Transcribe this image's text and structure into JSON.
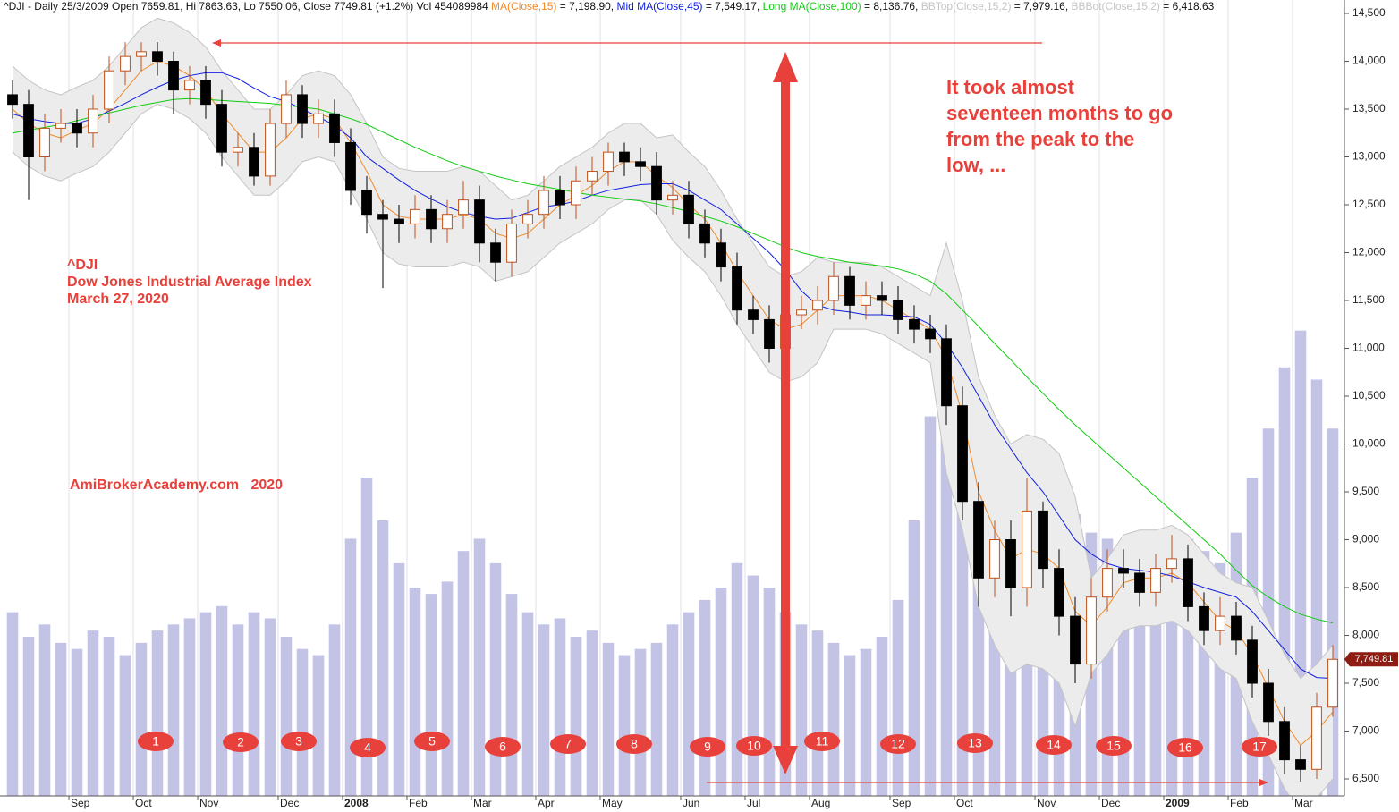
{
  "chart_data": {
    "type": "candlestick",
    "title": "^DJI - Daily 25/3/2009 Open 7659.81, Hi 7863.63, Lo 7550.06, Close 7749.81 (+1.2%) Vol 454089984",
    "categories": [
      null,
      null,
      null,
      null,
      "Sep",
      null,
      null,
      null,
      "Oct",
      null,
      null,
      null,
      "Nov",
      null,
      null,
      null,
      null,
      "Dec",
      null,
      null,
      null,
      "2008",
      null,
      null,
      null,
      "Feb",
      null,
      null,
      null,
      "Mar",
      null,
      null,
      null,
      "Apr",
      null,
      null,
      null,
      "May",
      null,
      null,
      null,
      null,
      "Jun",
      null,
      null,
      null,
      "Jul",
      null,
      null,
      null,
      "Aug",
      null,
      null,
      null,
      null,
      "Sep",
      null,
      null,
      null,
      "Oct",
      null,
      null,
      null,
      null,
      "Nov",
      null,
      null,
      null,
      "Dec",
      null,
      null,
      null,
      "2009",
      null,
      null,
      null,
      "Feb",
      null,
      null,
      null,
      "Mar",
      null,
      null
    ],
    "open": [
      13650,
      13550,
      13000,
      13300,
      13350,
      13250,
      13500,
      13900,
      14050,
      14100,
      14000,
      13700,
      13800,
      13550,
      13050,
      13100,
      12800,
      13350,
      13650,
      13350,
      13450,
      13150,
      12650,
      12400,
      12350,
      12300,
      12450,
      12250,
      12400,
      12550,
      12100,
      11900,
      12300,
      12400,
      12650,
      12500,
      12750,
      12850,
      13050,
      12950,
      12900,
      12550,
      12600,
      12300,
      12100,
      11850,
      11400,
      11300,
      11000,
      11350,
      11400,
      11500,
      11750,
      11450,
      11550,
      11500,
      11300,
      11200,
      11100,
      10400,
      9400,
      8600,
      9000,
      8500,
      9300,
      8700,
      8200,
      7700,
      8400,
      8700,
      8650,
      8450,
      8700,
      8800,
      8300,
      8050,
      8200,
      7950,
      7500,
      7100,
      6700,
      6600,
      7250
    ],
    "high": [
      13800,
      13700,
      13450,
      13500,
      13500,
      13650,
      14050,
      14200,
      14200,
      14200,
      14100,
      13950,
      13950,
      13700,
      13250,
      13250,
      13500,
      13800,
      13750,
      13600,
      13600,
      13300,
      12800,
      12550,
      12500,
      12600,
      12600,
      12550,
      12750,
      12700,
      12250,
      12450,
      12550,
      12800,
      12800,
      12900,
      13000,
      13150,
      13150,
      13100,
      13050,
      12750,
      12750,
      12450,
      12250,
      12000,
      11550,
      11450,
      11500,
      11550,
      11650,
      11900,
      11850,
      11700,
      11700,
      11650,
      11450,
      11350,
      11250,
      10600,
      9600,
      9200,
      9200,
      9650,
      9400,
      8900,
      8400,
      8600,
      8900,
      8900,
      8800,
      8850,
      9050,
      8950,
      8450,
      8400,
      8350,
      8100,
      7650,
      7250,
      6850,
      7400,
      7900
    ],
    "low": [
      13400,
      12550,
      12850,
      13150,
      13100,
      13100,
      13350,
      13750,
      13900,
      13850,
      13450,
      13550,
      13400,
      12900,
      12900,
      12700,
      12700,
      13200,
      13200,
      13200,
      13000,
      12500,
      12200,
      11630,
      12100,
      12150,
      12100,
      12100,
      12250,
      11900,
      11700,
      11750,
      12150,
      12250,
      12350,
      12350,
      12600,
      12700,
      12800,
      12750,
      12400,
      12400,
      12150,
      11950,
      11700,
      11250,
      11150,
      10850,
      10850,
      11200,
      11250,
      11350,
      11300,
      11300,
      11350,
      11150,
      11050,
      10950,
      10200,
      9200,
      8300,
      8400,
      8200,
      8300,
      8500,
      8000,
      7500,
      7550,
      8250,
      8500,
      8300,
      8300,
      8550,
      8150,
      7900,
      7900,
      7800,
      7350,
      6950,
      6550,
      6470,
      6500,
      7150
    ],
    "close": [
      13550,
      13000,
      13300,
      13350,
      13250,
      13500,
      13900,
      14050,
      14100,
      14000,
      13700,
      13800,
      13550,
      13050,
      13100,
      12800,
      13350,
      13650,
      13350,
      13450,
      13150,
      12650,
      12400,
      12350,
      12300,
      12450,
      12250,
      12400,
      12550,
      12100,
      11900,
      12300,
      12400,
      12650,
      12500,
      12750,
      12850,
      13050,
      12950,
      12900,
      12550,
      12600,
      12300,
      12100,
      11850,
      11400,
      11300,
      11000,
      11350,
      11400,
      11500,
      11750,
      11450,
      11550,
      11500,
      11300,
      11200,
      11100,
      10400,
      9400,
      8600,
      9000,
      8500,
      9300,
      8700,
      8200,
      7700,
      8400,
      8700,
      8650,
      8450,
      8700,
      8800,
      8300,
      8050,
      8200,
      7950,
      7500,
      7100,
      6700,
      6600,
      7250,
      7750
    ],
    "up_color": "#c0501a",
    "down_color": "#000000",
    "volume": [
      300000000,
      260000000,
      280000000,
      250000000,
      240000000,
      270000000,
      260000000,
      230000000,
      250000000,
      270000000,
      280000000,
      290000000,
      300000000,
      310000000,
      280000000,
      300000000,
      290000000,
      260000000,
      240000000,
      230000000,
      280000000,
      420000000,
      520000000,
      450000000,
      380000000,
      340000000,
      330000000,
      350000000,
      400000000,
      420000000,
      380000000,
      330000000,
      300000000,
      280000000,
      290000000,
      260000000,
      270000000,
      250000000,
      230000000,
      240000000,
      250000000,
      280000000,
      300000000,
      320000000,
      340000000,
      380000000,
      360000000,
      340000000,
      300000000,
      280000000,
      270000000,
      250000000,
      230000000,
      240000000,
      260000000,
      320000000,
      450000000,
      620000000,
      780000000,
      700000000,
      560000000,
      520000000,
      480000000,
      470000000,
      520000000,
      540000000,
      460000000,
      430000000,
      420000000,
      390000000,
      350000000,
      300000000,
      380000000,
      420000000,
      400000000,
      380000000,
      430000000,
      520000000,
      600000000,
      700000000,
      760000000,
      680000000,
      600000000
    ],
    "volume_color": "#b4b4e0",
    "y2lim": [
      0,
      1300000000
    ],
    "series": [
      {
        "name": "MA(Close,15)",
        "value_label": "= 7,198.90,",
        "color": "#f08a2a",
        "values": [
          13500,
          13350,
          13250,
          13200,
          13280,
          13350,
          13500,
          13700,
          13900,
          14000,
          13950,
          13850,
          13700,
          13450,
          13250,
          13050,
          13050,
          13200,
          13400,
          13450,
          13400,
          13150,
          12850,
          12500,
          12380,
          12350,
          12350,
          12350,
          12400,
          12350,
          12200,
          12150,
          12200,
          12350,
          12500,
          12600,
          12700,
          12850,
          12950,
          12950,
          12800,
          12680,
          12500,
          12350,
          12100,
          11800,
          11550,
          11300,
          11200,
          11250,
          11400,
          11550,
          11550,
          11550,
          11500,
          11400,
          11300,
          11200,
          10900,
          10300,
          9500,
          9100,
          8800,
          8900,
          8850,
          8700,
          8250,
          8100,
          8300,
          8550,
          8600,
          8600,
          8650,
          8550,
          8350,
          8150,
          8050,
          7800,
          7450,
          7100,
          6850,
          7000,
          7200
        ]
      },
      {
        "name": "Mid MA(Close,45)",
        "value_label": "= 7,549.17,",
        "color": "#1020e0",
        "values": [
          13450,
          13400,
          13370,
          13350,
          13350,
          13400,
          13480,
          13560,
          13650,
          13730,
          13800,
          13850,
          13880,
          13880,
          13820,
          13720,
          13630,
          13580,
          13500,
          13420,
          13330,
          13200,
          13000,
          12880,
          12760,
          12650,
          12560,
          12480,
          12420,
          12380,
          12350,
          12360,
          12420,
          12480,
          12500,
          12540,
          12600,
          12650,
          12680,
          12710,
          12720,
          12720,
          12650,
          12550,
          12450,
          12300,
          12150,
          12000,
          11820,
          11600,
          11450,
          11400,
          11380,
          11350,
          11350,
          11340,
          11330,
          11250,
          11050,
          10800,
          10500,
          10200,
          9950,
          9700,
          9500,
          9250,
          9000,
          8850,
          8750,
          8700,
          8680,
          8660,
          8620,
          8560,
          8500,
          8450,
          8400,
          8250,
          8050,
          7850,
          7650,
          7560,
          7550
        ]
      },
      {
        "name": "Long MA(Close,100)",
        "value_label": "= 8,136.76,",
        "color": "#10cc10",
        "values": [
          13250,
          13280,
          13310,
          13340,
          13380,
          13420,
          13460,
          13500,
          13540,
          13570,
          13600,
          13610,
          13600,
          13590,
          13580,
          13570,
          13560,
          13540,
          13520,
          13500,
          13450,
          13400,
          13340,
          13260,
          13180,
          13100,
          13030,
          12960,
          12900,
          12850,
          12800,
          12760,
          12720,
          12690,
          12660,
          12630,
          12600,
          12580,
          12560,
          12540,
          12510,
          12470,
          12430,
          12380,
          12330,
          12270,
          12200,
          12130,
          12060,
          12000,
          11960,
          11930,
          11900,
          11880,
          11860,
          11830,
          11780,
          11700,
          11570,
          11400,
          11230,
          11050,
          10880,
          10700,
          10530,
          10360,
          10200,
          10050,
          9900,
          9750,
          9600,
          9450,
          9300,
          9150,
          9000,
          8850,
          8680,
          8520,
          8400,
          8300,
          8220,
          8170,
          8130
        ]
      },
      {
        "name": "BBTop(Close,15,2)",
        "value_label": "= 7,979.16,",
        "color": "#c4c4c4",
        "values": [
          13950,
          13800,
          13700,
          13650,
          13730,
          13800,
          13950,
          14150,
          14350,
          14450,
          14400,
          14300,
          14150,
          13900,
          13700,
          13500,
          13500,
          13650,
          13850,
          13900,
          13850,
          13650,
          13350,
          13000,
          12880,
          12850,
          12850,
          12850,
          12900,
          12850,
          12700,
          12550,
          12600,
          12750,
          12900,
          13000,
          13100,
          13250,
          13350,
          13350,
          13200,
          13230,
          13050,
          12900,
          12650,
          12350,
          12100,
          11850,
          11750,
          11800,
          11950,
          11900,
          11900,
          11900,
          11850,
          11750,
          11650,
          11550,
          12100,
          11500,
          10700,
          10300,
          10000,
          10100,
          10050,
          9900,
          9450,
          8600,
          8800,
          9050,
          9100,
          9100,
          9150,
          9050,
          8850,
          8650,
          8550,
          8500,
          8150,
          7800,
          7550,
          7700,
          7900
        ]
      },
      {
        "name": "BBBot(Close,15,2)",
        "value_label": "= 6,418.63",
        "color": "#c4c4c4",
        "values": [
          13050,
          12900,
          12800,
          12750,
          12830,
          12900,
          13050,
          13250,
          13450,
          13550,
          13500,
          13400,
          13250,
          13000,
          12800,
          12600,
          12600,
          12750,
          12950,
          13000,
          12950,
          12650,
          12350,
          12000,
          11880,
          11850,
          11850,
          11850,
          11900,
          11850,
          11700,
          11750,
          11800,
          11950,
          12100,
          12200,
          12300,
          12450,
          12550,
          12550,
          12400,
          12130,
          11950,
          11800,
          11550,
          11250,
          11000,
          10750,
          10650,
          10700,
          10850,
          11200,
          11200,
          11200,
          11150,
          11050,
          10950,
          10850,
          9700,
          9100,
          8300,
          7900,
          7600,
          7700,
          7650,
          7500,
          7050,
          7600,
          7800,
          8050,
          8100,
          8100,
          8150,
          8050,
          7850,
          7650,
          7550,
          7100,
          6750,
          6400,
          6150,
          6300,
          6500
        ]
      }
    ],
    "band_color": "#ececec",
    "ylim": [
      6500,
      14500
    ],
    "yticks": [
      {
        "value": 6500,
        "label": "6,500"
      },
      {
        "value": 7000,
        "label": "7,000"
      },
      {
        "value": 7500,
        "label": "7,500"
      },
      {
        "value": 8000,
        "label": "8,000"
      },
      {
        "value": 8500,
        "label": "8,500"
      },
      {
        "value": 9000,
        "label": "9,000"
      },
      {
        "value": 9500,
        "label": "9,500"
      },
      {
        "value": 10000,
        "label": "10,000"
      },
      {
        "value": 10500,
        "label": "10,500"
      },
      {
        "value": 11000,
        "label": "11,000"
      },
      {
        "value": 11500,
        "label": "11,500"
      },
      {
        "value": 12000,
        "label": "12,000"
      },
      {
        "value": 12500,
        "label": "12,500"
      },
      {
        "value": 13000,
        "label": "13,000"
      },
      {
        "value": 13500,
        "label": "13,500"
      },
      {
        "value": 14000,
        "label": "14,000"
      },
      {
        "value": 14500,
        "label": "14,500"
      }
    ],
    "last_price_label": "7,749.81",
    "grid": true,
    "annotation": [
      "It took almost",
      "seventeen months to go",
      "from the peak to the",
      "low, ..."
    ],
    "index_info": [
      "^DJI",
      "Dow Jones Industrial Average Index",
      "March 27, 2020"
    ],
    "watermark": "AmiBrokerAcademy.com   2020",
    "month_markers": [
      "1",
      "2",
      "3",
      "4",
      "5",
      "6",
      "7",
      "8",
      "9",
      "10",
      "11",
      "12",
      "13",
      "14",
      "15",
      "16",
      "17"
    ]
  }
}
